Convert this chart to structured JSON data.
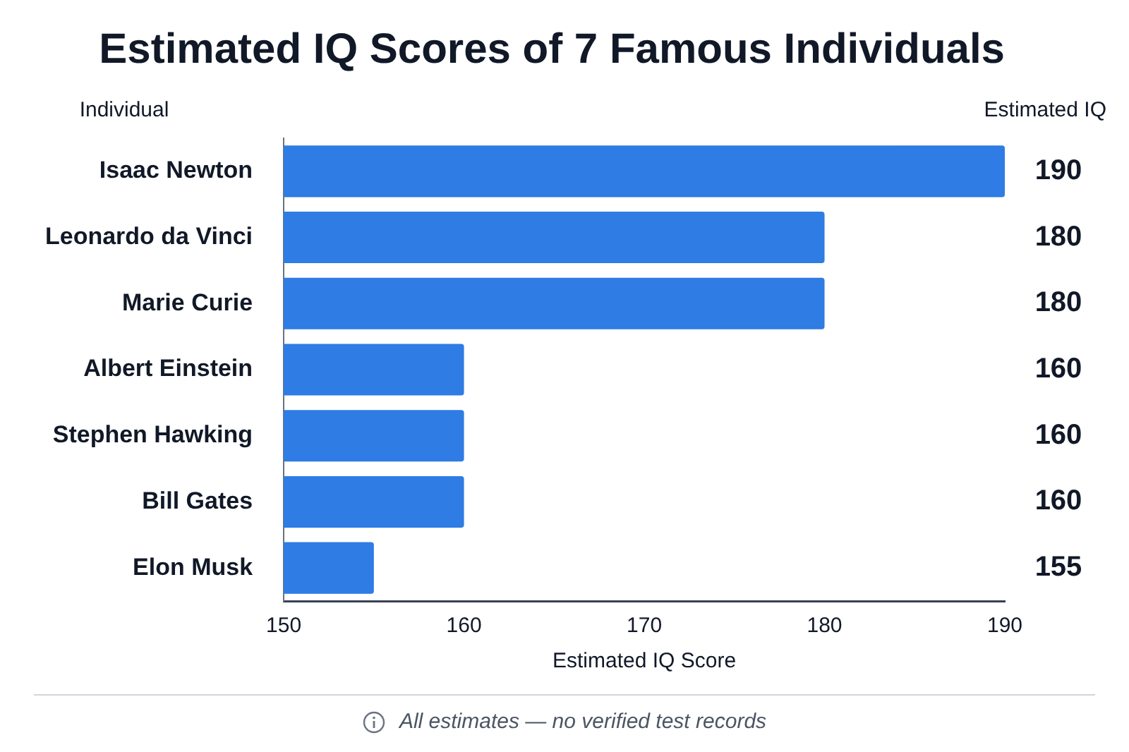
{
  "chart_data": {
    "type": "bar",
    "orientation": "horizontal",
    "title": "Estimated IQ Scores of 7 Famous Individuals",
    "ylabel": "Individual",
    "xlabel": "Estimated IQ Score",
    "categories": [
      "Isaac Newton",
      "Leonardo da Vinci",
      "Marie Curie",
      "Albert Einstein",
      "Stephen Hawking",
      "Bill Gates",
      "Elon Musk"
    ],
    "values": [
      190,
      180,
      180,
      160,
      160,
      160,
      155
    ],
    "color": "#2e7ce4",
    "xlim": [
      150,
      190
    ],
    "xticks": [
      150,
      160,
      170,
      180,
      190
    ],
    "grid": false,
    "data_labels": true,
    "annotations": [
      "Estimated IQ",
      "All estimates — no verified test records"
    ]
  }
}
